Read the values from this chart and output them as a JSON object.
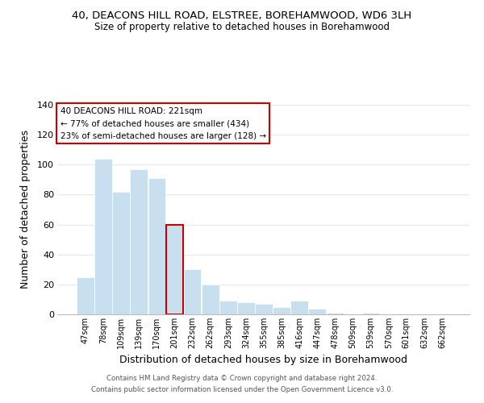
{
  "title1": "40, DEACONS HILL ROAD, ELSTREE, BOREHAMWOOD, WD6 3LH",
  "title2": "Size of property relative to detached houses in Borehamwood",
  "xlabel": "Distribution of detached houses by size in Borehamwood",
  "ylabel": "Number of detached properties",
  "bar_labels": [
    "47sqm",
    "78sqm",
    "109sqm",
    "139sqm",
    "170sqm",
    "201sqm",
    "232sqm",
    "262sqm",
    "293sqm",
    "324sqm",
    "355sqm",
    "385sqm",
    "416sqm",
    "447sqm",
    "478sqm",
    "509sqm",
    "539sqm",
    "570sqm",
    "601sqm",
    "632sqm",
    "662sqm"
  ],
  "bar_values": [
    25,
    104,
    82,
    97,
    91,
    60,
    30,
    20,
    9,
    8,
    7,
    5,
    9,
    4,
    1,
    0,
    1,
    0,
    0,
    0,
    0
  ],
  "bar_color": "#c8dff0",
  "highlight_bar_index": 5,
  "highlight_bar_edge_color": "#cc0000",
  "ylim": [
    0,
    140
  ],
  "yticks": [
    0,
    20,
    40,
    60,
    80,
    100,
    120,
    140
  ],
  "annotation_title": "40 DEACONS HILL ROAD: 221sqm",
  "annotation_line1": "← 77% of detached houses are smaller (434)",
  "annotation_line2": "23% of semi-detached houses are larger (128) →",
  "annotation_box_color": "#ffffff",
  "annotation_box_edge_color": "#cc0000",
  "footer1": "Contains HM Land Registry data © Crown copyright and database right 2024.",
  "footer2": "Contains public sector information licensed under the Open Government Licence v3.0.",
  "bg_color": "#ffffff",
  "grid_color": "#e8e8e8"
}
